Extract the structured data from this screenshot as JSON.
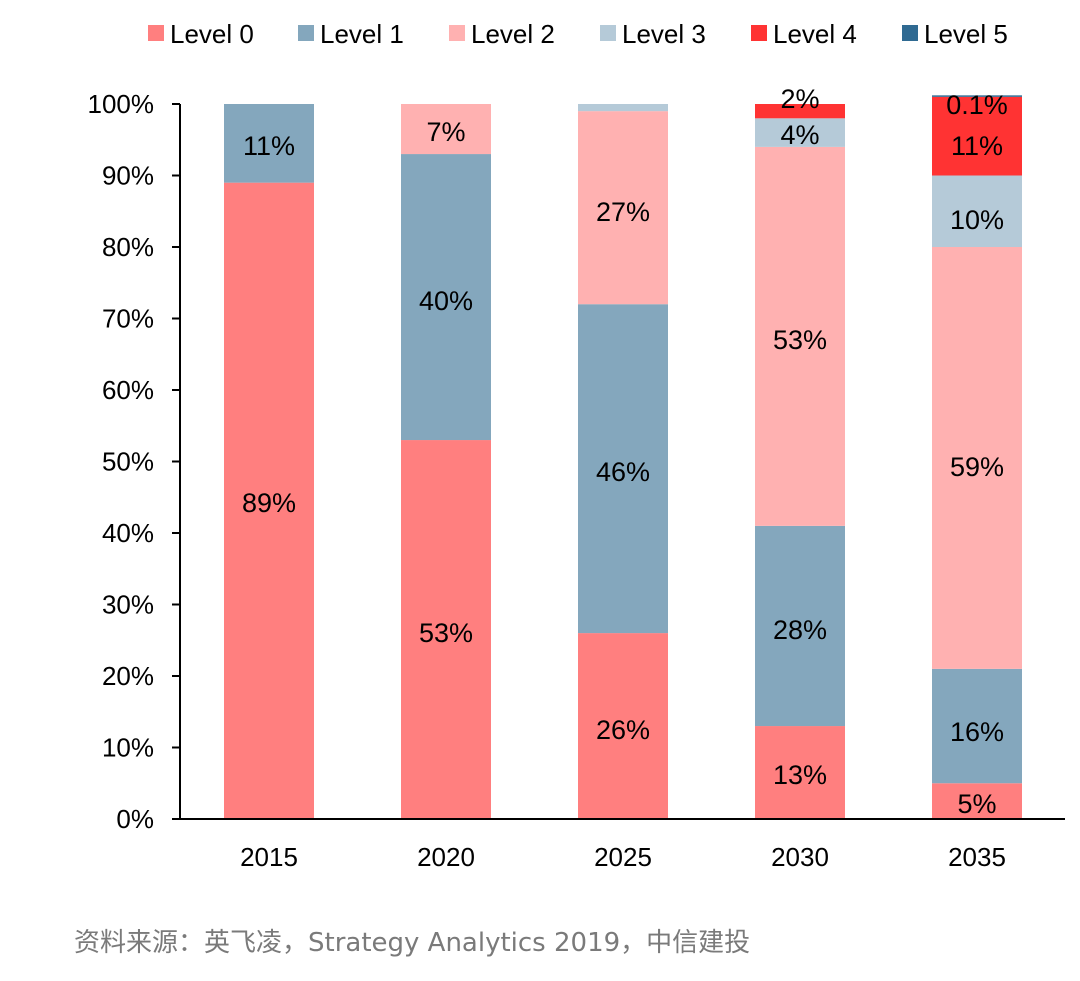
{
  "chart_data": {
    "type": "bar",
    "stacked": true,
    "categories": [
      "2015",
      "2020",
      "2025",
      "2030",
      "2035"
    ],
    "series": [
      {
        "name": "Level 0",
        "color": "#ff7f7f",
        "values": [
          89,
          53,
          26,
          13,
          5
        ]
      },
      {
        "name": "Level 1",
        "color": "#84a7bd",
        "values": [
          11,
          40,
          46,
          28,
          16
        ]
      },
      {
        "name": "Level 2",
        "color": "#ffb1b1",
        "values": [
          0,
          7,
          27,
          53,
          59
        ]
      },
      {
        "name": "Level 3",
        "color": "#b5cad8",
        "values": [
          0,
          0,
          1,
          4,
          10
        ]
      },
      {
        "name": "Level 4",
        "color": "#ff3333",
        "values": [
          0,
          0,
          0,
          2,
          11
        ]
      },
      {
        "name": "Level 5",
        "color": "#2f6a92",
        "values": [
          0,
          0,
          0,
          0,
          0.1
        ]
      }
    ],
    "data_labels": [
      [
        "89%",
        "11%",
        "",
        "",
        "",
        ""
      ],
      [
        "53%",
        "40%",
        "7%",
        "",
        "",
        ""
      ],
      [
        "26%",
        "46%",
        "27%",
        "",
        "",
        ""
      ],
      [
        "13%",
        "28%",
        "53%",
        "4%",
        "2%",
        ""
      ],
      [
        "5%",
        "16%",
        "59%",
        "10%",
        "11%",
        "0.1%"
      ]
    ],
    "yticks": [
      "0%",
      "10%",
      "20%",
      "30%",
      "40%",
      "50%",
      "60%",
      "70%",
      "80%",
      "90%",
      "100%"
    ],
    "ylim": [
      0,
      100
    ],
    "legend_position": "top",
    "grid": false
  },
  "source_note": "资料来源：英飞凌，Strategy Analytics 2019，中信建投"
}
